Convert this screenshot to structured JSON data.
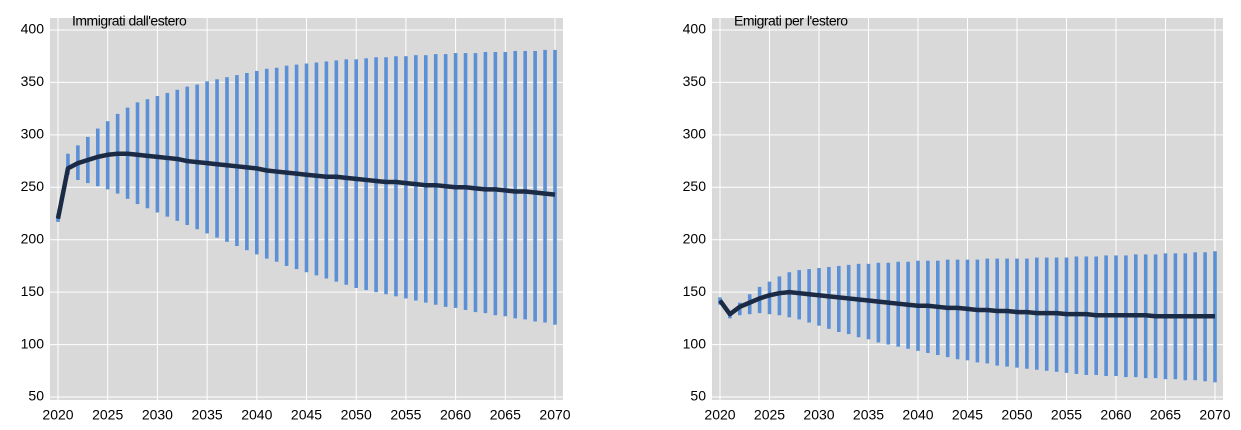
{
  "chart_data": [
    {
      "type": "range",
      "title": "Immigrati dall'estero",
      "x": [
        2020,
        2021,
        2022,
        2023,
        2024,
        2025,
        2026,
        2027,
        2028,
        2029,
        2030,
        2031,
        2032,
        2033,
        2034,
        2035,
        2036,
        2037,
        2038,
        2039,
        2040,
        2041,
        2042,
        2043,
        2044,
        2045,
        2046,
        2047,
        2048,
        2049,
        2050,
        2051,
        2052,
        2053,
        2054,
        2055,
        2056,
        2057,
        2058,
        2059,
        2060,
        2061,
        2062,
        2063,
        2064,
        2065,
        2066,
        2067,
        2068,
        2069,
        2070
      ],
      "ranges": {
        "color": "#5b8fd6",
        "low": [
          217,
          262,
          257,
          254,
          251,
          248,
          244,
          239,
          234,
          230,
          226,
          222,
          218,
          214,
          210,
          206,
          202,
          198,
          194,
          190,
          186,
          182,
          179,
          175,
          172,
          169,
          166,
          163,
          160,
          157,
          154,
          152,
          150,
          148,
          146,
          144,
          142,
          140,
          138,
          136,
          135,
          133,
          131,
          130,
          128,
          127,
          125,
          124,
          122,
          121,
          119
        ],
        "high": [
          225,
          282,
          290,
          298,
          306,
          313,
          320,
          326,
          331,
          334,
          337,
          340,
          343,
          346,
          348,
          351,
          353,
          355,
          357,
          359,
          361,
          363,
          364,
          366,
          367,
          368,
          369,
          370,
          371,
          372,
          372,
          373,
          374,
          374,
          375,
          375,
          376,
          376,
          377,
          377,
          378,
          378,
          378,
          379,
          379,
          379,
          380,
          380,
          380,
          381,
          381
        ]
      },
      "line": {
        "color": "#1c2b45",
        "values": [
          220,
          268,
          273,
          276,
          279,
          281,
          282,
          282,
          281,
          280,
          279,
          278,
          277,
          275,
          274,
          273,
          272,
          271,
          270,
          269,
          268,
          266,
          265,
          264,
          263,
          262,
          261,
          260,
          260,
          259,
          258,
          257,
          256,
          255,
          255,
          254,
          253,
          252,
          252,
          251,
          250,
          250,
          249,
          248,
          248,
          247,
          246,
          246,
          245,
          244,
          243
        ]
      },
      "xlim": [
        2020,
        2070
      ],
      "xticks": [
        2020,
        2025,
        2030,
        2035,
        2040,
        2045,
        2050,
        2055,
        2060,
        2065,
        2070
      ],
      "ylim": [
        50,
        400
      ],
      "yticks": [
        50,
        100,
        150,
        200,
        250,
        300,
        350,
        400
      ],
      "grid": true
    },
    {
      "type": "range",
      "title": "Emigrati per l'estero",
      "x": [
        2020,
        2021,
        2022,
        2023,
        2024,
        2025,
        2026,
        2027,
        2028,
        2029,
        2030,
        2031,
        2032,
        2033,
        2034,
        2035,
        2036,
        2037,
        2038,
        2039,
        2040,
        2041,
        2042,
        2043,
        2044,
        2045,
        2046,
        2047,
        2048,
        2049,
        2050,
        2051,
        2052,
        2053,
        2054,
        2055,
        2056,
        2057,
        2058,
        2059,
        2060,
        2061,
        2062,
        2063,
        2064,
        2065,
        2066,
        2067,
        2068,
        2069,
        2070
      ],
      "ranges": {
        "color": "#5b8fd6",
        "low": [
          138,
          125,
          128,
          129,
          130,
          129,
          128,
          126,
          124,
          121,
          118,
          115,
          112,
          110,
          107,
          105,
          102,
          100,
          98,
          96,
          94,
          92,
          90,
          88,
          86,
          85,
          83,
          82,
          80,
          79,
          78,
          77,
          76,
          75,
          74,
          73,
          72,
          71,
          71,
          70,
          70,
          69,
          69,
          68,
          68,
          67,
          67,
          66,
          66,
          65,
          64
        ],
        "high": [
          145,
          130,
          140,
          148,
          155,
          160,
          165,
          169,
          171,
          172,
          173,
          174,
          175,
          176,
          177,
          177,
          178,
          178,
          179,
          179,
          180,
          180,
          180,
          181,
          181,
          181,
          181,
          182,
          182,
          182,
          182,
          182,
          183,
          183,
          183,
          183,
          184,
          184,
          184,
          185,
          185,
          185,
          186,
          186,
          186,
          187,
          187,
          187,
          188,
          188,
          189
        ]
      },
      "line": {
        "color": "#1c2b45",
        "values": [
          142,
          129,
          136,
          140,
          144,
          147,
          149,
          150,
          149,
          148,
          147,
          146,
          145,
          144,
          143,
          142,
          141,
          140,
          139,
          138,
          137,
          137,
          136,
          135,
          135,
          134,
          133,
          133,
          132,
          132,
          131,
          131,
          130,
          130,
          130,
          129,
          129,
          129,
          128,
          128,
          128,
          128,
          128,
          128,
          127,
          127,
          127,
          127,
          127,
          127,
          127
        ]
      },
      "xlim": [
        2020,
        2070
      ],
      "xticks": [
        2020,
        2025,
        2030,
        2035,
        2040,
        2045,
        2050,
        2055,
        2060,
        2065,
        2070
      ],
      "ylim": [
        50,
        400
      ],
      "yticks": [
        50,
        100,
        150,
        200,
        250,
        300,
        350,
        400
      ],
      "grid": true
    }
  ]
}
